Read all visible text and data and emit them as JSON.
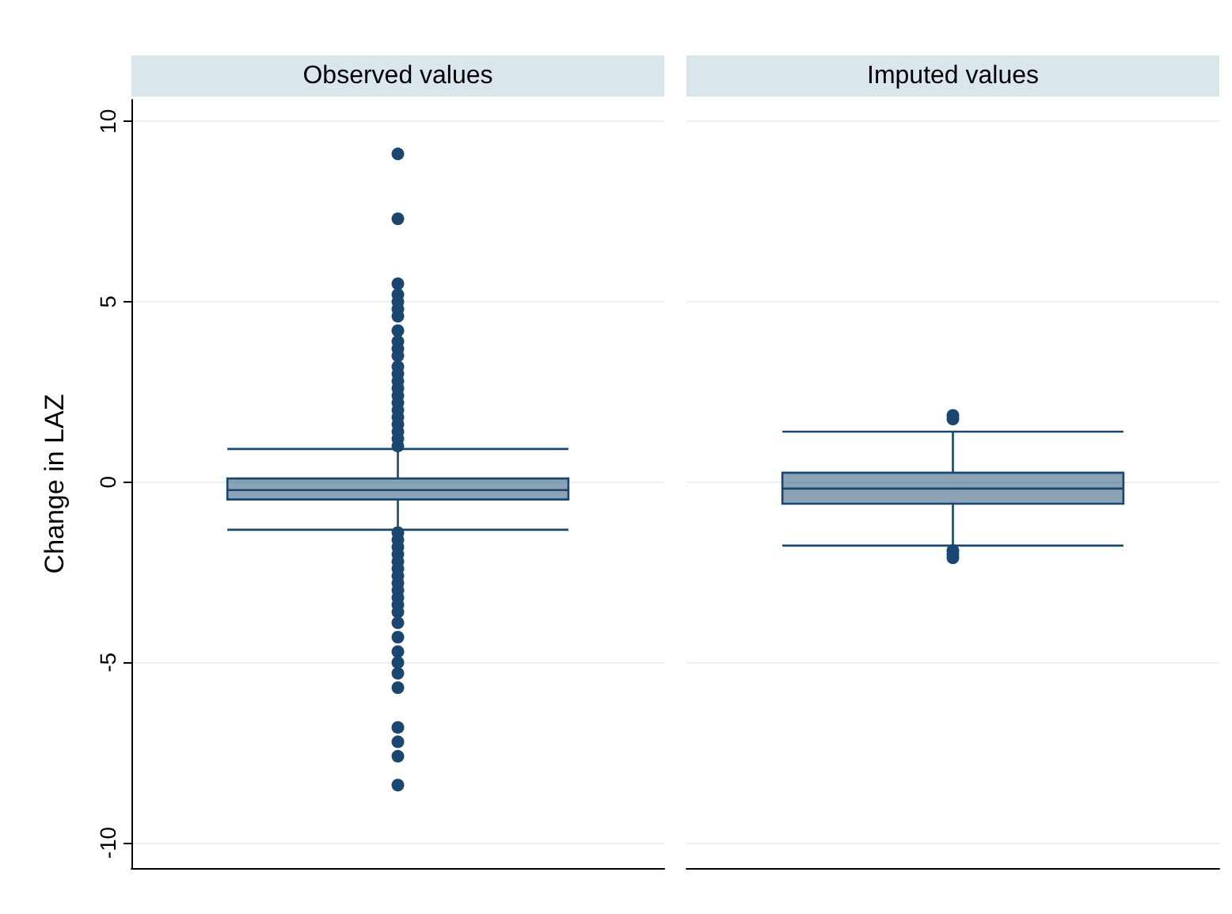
{
  "chart_data": {
    "type": "box",
    "ylabel": "Change in LAZ",
    "categories": [
      "Observed values",
      "Imputed values"
    ],
    "ylim": [
      -10.7,
      10.6
    ],
    "yticks": [
      -10,
      -5,
      0,
      5,
      10
    ],
    "grid": "y",
    "series": [
      {
        "color": "#1a476f",
        "boxes": [
          {
            "low": -1.32,
            "q1": -0.48,
            "median": -0.22,
            "q3": 0.1,
            "high": 0.92,
            "outliers": [
              9.1,
              7.3,
              5.5,
              5.2,
              5.0,
              4.8,
              4.6,
              4.2,
              3.9,
              3.7,
              3.5,
              3.2,
              3.0,
              2.8,
              2.6,
              2.4,
              2.2,
              2.0,
              1.8,
              1.6,
              1.4,
              1.2,
              1.0,
              -1.4,
              -1.6,
              -1.8,
              -2.0,
              -2.2,
              -2.4,
              -2.6,
              -2.8,
              -3.0,
              -3.2,
              -3.4,
              -3.6,
              -3.9,
              -4.3,
              -4.7,
              -5.0,
              -5.3,
              -5.7,
              -6.8,
              -7.2,
              -7.6,
              -8.4
            ]
          },
          {
            "low": -1.76,
            "q1": -0.6,
            "median": -0.18,
            "q3": 0.26,
            "high": 1.4,
            "outliers": [
              1.85,
              1.75,
              -1.9,
              -2.0,
              -2.1
            ]
          }
        ]
      }
    ]
  }
}
